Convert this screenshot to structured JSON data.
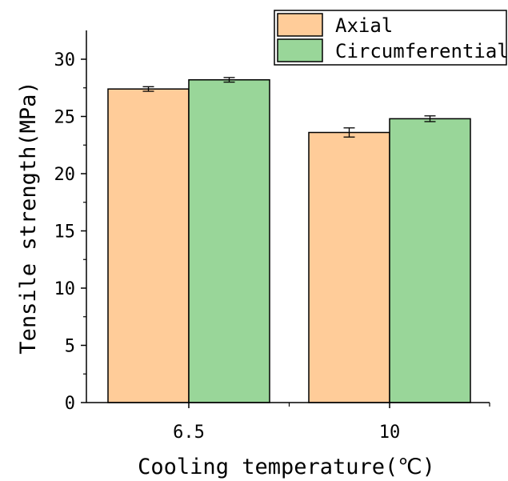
{
  "chart_data": {
    "type": "bar",
    "xlabel": "Cooling temperature(℃)",
    "ylabel": "Tensile strength(MPa)",
    "categories": [
      "6.5",
      "10"
    ],
    "series": [
      {
        "name": "Axial",
        "color": "#FFCC99",
        "values": [
          27.4,
          23.6
        ],
        "errors": [
          0.2,
          0.4
        ]
      },
      {
        "name": "Circumferential",
        "color": "#99D699",
        "values": [
          28.2,
          24.8
        ],
        "errors": [
          0.2,
          0.25
        ]
      }
    ],
    "ylim": [
      0,
      32
    ],
    "yticks": [
      "0",
      "5",
      "10",
      "15",
      "20",
      "25",
      "30"
    ],
    "ytick_values": [
      0,
      5,
      10,
      15,
      20,
      25,
      30
    ],
    "legend_position": "top-right",
    "grid": false
  }
}
